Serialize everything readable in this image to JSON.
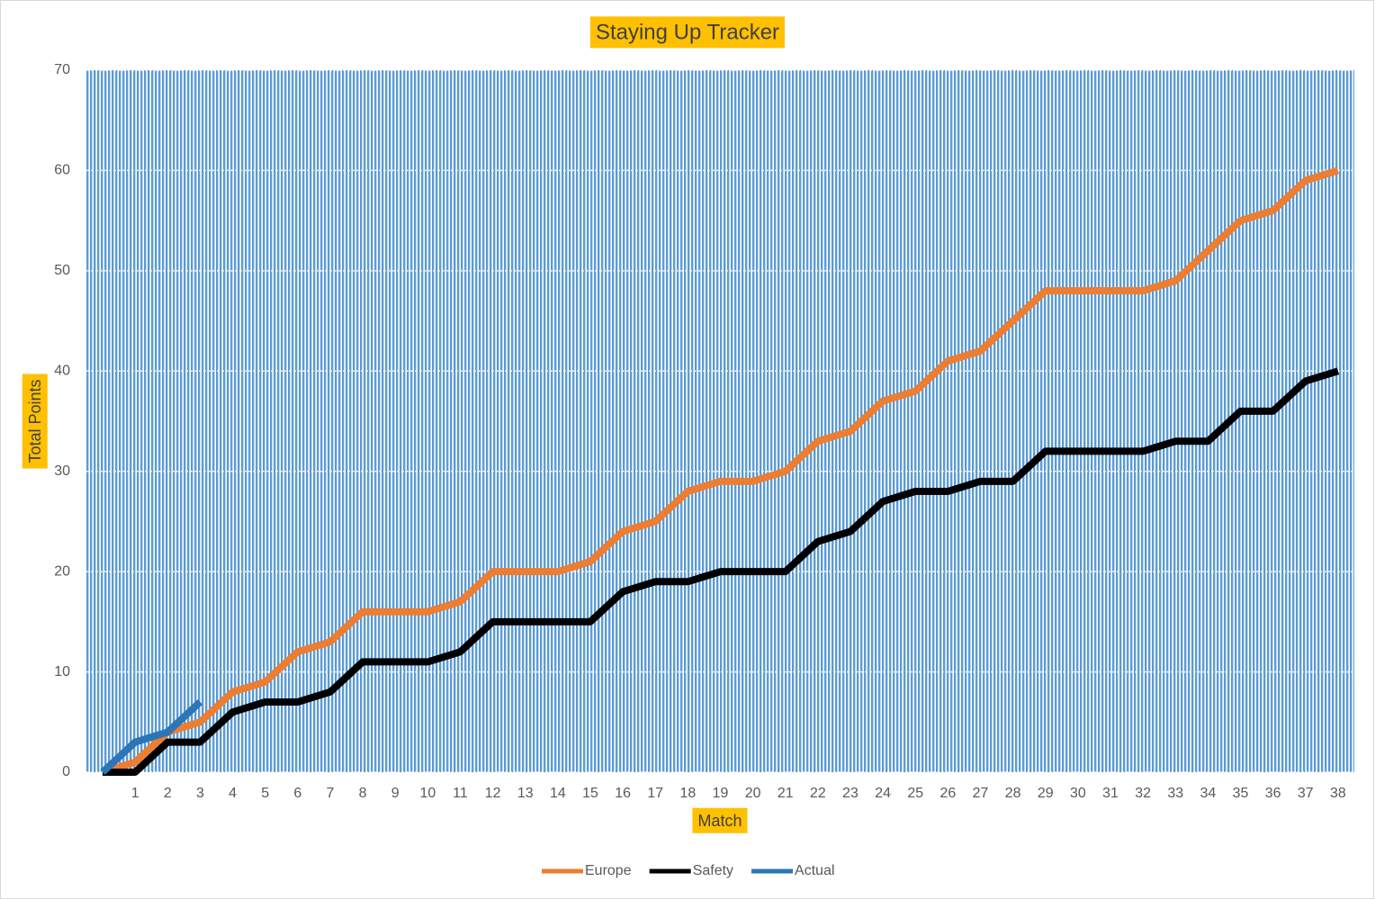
{
  "chart_data": {
    "type": "line",
    "title": "Staying Up Tracker",
    "x_label": "Match",
    "y_label": "Total Points",
    "categories": [
      null,
      "1",
      "2",
      "3",
      "4",
      "5",
      "6",
      "7",
      "8",
      "9",
      "10",
      "11",
      "12",
      "13",
      "14",
      "15",
      "16",
      "17",
      "18",
      "19",
      "20",
      "21",
      "22",
      "23",
      "24",
      "25",
      "26",
      "27",
      "28",
      "29",
      "30",
      "31",
      "32",
      "33",
      "34",
      "35",
      "36",
      "37",
      "38"
    ],
    "series": [
      {
        "name": "Europe",
        "color": "#ed7d31",
        "values": [
          0,
          1,
          4,
          5,
          8,
          9,
          12,
          13,
          16,
          16,
          16,
          17,
          20,
          20,
          20,
          21,
          24,
          25,
          28,
          29,
          29,
          30,
          33,
          34,
          37,
          38,
          41,
          42,
          45,
          48,
          48,
          48,
          48,
          49,
          52,
          55,
          56,
          59,
          60
        ]
      },
      {
        "name": "Safety",
        "color": "#000000",
        "values": [
          0,
          0,
          3,
          3,
          6,
          7,
          7,
          8,
          11,
          11,
          11,
          12,
          15,
          15,
          15,
          15,
          18,
          19,
          19,
          20,
          20,
          20,
          23,
          24,
          27,
          28,
          28,
          29,
          29,
          32,
          32,
          32,
          32,
          33,
          33,
          36,
          36,
          39,
          40
        ]
      },
      {
        "name": "Actual",
        "color": "#2e75b6",
        "values": [
          0,
          3,
          4,
          7,
          null,
          null,
          null,
          null,
          null,
          null,
          null,
          null,
          null,
          null,
          null,
          null,
          null,
          null,
          null,
          null,
          null,
          null,
          null,
          null,
          null,
          null,
          null,
          null,
          null,
          null,
          null,
          null,
          null,
          null,
          null,
          null,
          null,
          null,
          null
        ]
      }
    ],
    "ylim": [
      0,
      70
    ],
    "yticks": [
      0,
      10,
      20,
      30,
      40,
      50,
      60,
      70
    ],
    "grid": true,
    "legend": "bottom"
  }
}
